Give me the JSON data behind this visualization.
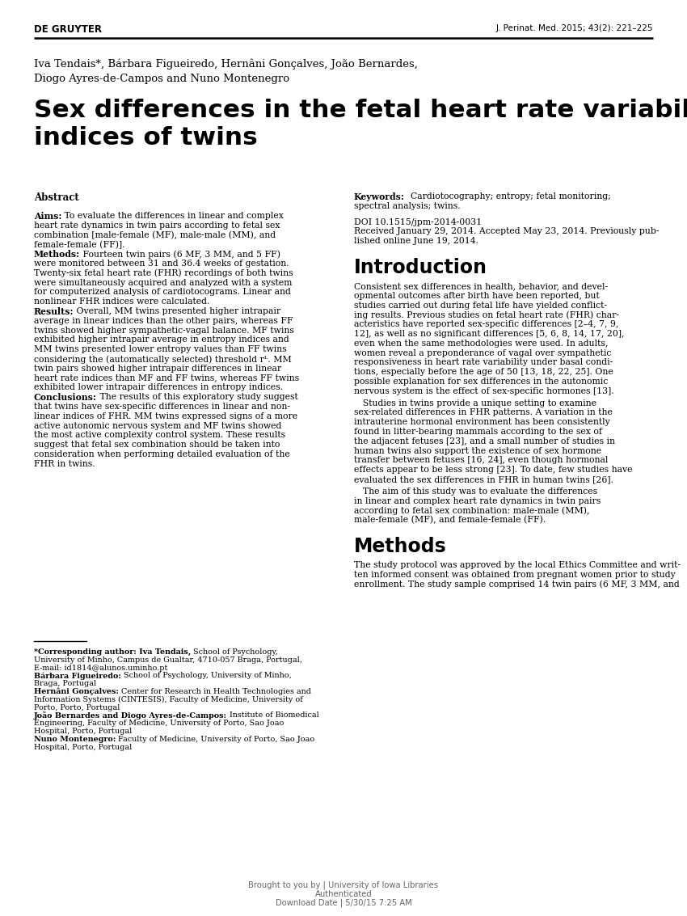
{
  "background_color": "#ffffff",
  "header_left": "DE GRUYTER",
  "header_right": "J. Perinat. Med. 2015; 43(2): 221–225",
  "authors": "Iva Tendais*, Bárbara Figueiredo, Hernâni Gonçalves, João Bernardes,\nDiogo Ayres-de-Campos and Nuno Montenegro",
  "title_line1": "Sex differences in the fetal heart rate variability",
  "title_line2": "indices of twins",
  "abstract_label": "Abstract",
  "aims_bold": "Aims:",
  "aims_text": " To evaluate the differences in linear and complex heart rate dynamics in twin pairs according to fetal sex combination [male-female (MF), male-male (MM), and female-female (FF)].",
  "methods_bold": "Methods:",
  "methods_text": " Fourteen twin pairs (6 MF, 3 MM, and 5 FF) were monitored between 31 and 36.4 weeks of gestation. Twenty-six fetal heart rate (FHR) recordings of both twins were simultaneously acquired and analyzed with a system for computerized analysis of cardiotocograms. Linear and nonlinear FHR indices were calculated.",
  "results_bold": "Results:",
  "results_text": " Overall, MM twins presented higher intrapair average in linear indices than the other pairs, whereas FF twins showed higher sympathetic-vagal balance. MF twins exhibited higher intrapair average in entropy indices and MM twins presented lower entropy values than FF twins considering the (automatically selected) threshold rᴸ. MM twin pairs showed higher intrapair differences in linear heart rate indices than MF and FF twins, whereas FF twins exhibited lower intrapair differences in entropy indices.",
  "conclusions_bold": "Conclusions:",
  "conclusions_text": " The results of this exploratory study suggest that twins have sex-specific differences in linear and nonlinear indices of FHR. MM twins expressed signs of a more active autonomic nervous system and MF twins showed the most active complexity control system. These results suggest that fetal sex combination should be taken into consideration when performing detailed evaluation of the FHR in twins.",
  "footnote_corresponding_bold": "*Corresponding author: Iva Tendais,",
  "footnote_corresponding_rest": " School of Psychology, University of Minho, Campus de Gualtar, 4710-057 Braga, Portugal, E-mail: id1814@alunos.uminho.pt",
  "footnote_barbara_bold": "Bárbara Figueiredo:",
  "footnote_barbara_rest": " School of Psychology, University of Minho, Braga, Portugal",
  "footnote_hernani_bold": "Hernâni Gonçalves:",
  "footnote_hernani_rest": " Center for Research in Health Technologies and Information Systems (CINTESIS), Faculty of Medicine, University of Porto, Porto, Portugal",
  "footnote_joao_bold": "João Bernardes and Diogo Ayres-de-Campos:",
  "footnote_joao_rest": " Institute of Biomedical Engineering, Faculty of Medicine, University of Porto, Sao Joao Hospital, Porto, Portugal",
  "footnote_nuno_bold": "Nuno Montenegro:",
  "footnote_nuno_rest": " Faculty of Medicine, University of Porto, Sao Joao Hospital, Porto, Portugal",
  "keywords_bold": "Keywords:",
  "keywords_text": " Cardiotocography; entropy; fetal monitoring; spectral analysis; twins.",
  "doi": "DOI 10.1515/jpm-2014-0031",
  "received_line1": "Received January 29, 2014. Accepted May 23, 2014. Previously pub-",
  "received_line2": "lished online June 19, 2014.",
  "intro_heading": "Introduction",
  "intro_p1_lines": [
    "Consistent sex differences in health, behavior, and devel-",
    "opmental outcomes after birth have been reported, but",
    "studies carried out during fetal life have yielded conflict-",
    "ing results. Previous studies on fetal heart rate (FHR) char-",
    "acteristics have reported sex-specific differences [2–4, 7, 9,",
    "12], as well as no significant differences [5, 6, 8, 14, 17, 20],",
    "even when the same methodologies were used. In adults,",
    "women reveal a preponderance of vagal over sympathetic",
    "responsiveness in heart rate variability under basal condi-",
    "tions, especially before the age of 50 [13, 18, 22, 25]. One",
    "possible explanation for sex differences in the autonomic",
    "nervous system is the effect of sex-specific hormones [13]."
  ],
  "intro_p2_lines": [
    " Studies in twins provide a unique setting to examine",
    "sex-related differences in FHR patterns. A variation in the",
    "intrauterine hormonal environment has been consistently",
    "found in litter-bearing mammals according to the sex of",
    "the adjacent fetuses [23], and a small number of studies in",
    "human twins also support the existence of sex hormone",
    "transfer between fetuses [16, 24], even though hormonal",
    "effects appear to be less strong [23]. To date, few studies have",
    "evaluated the sex differences in FHR in human twins [26]."
  ],
  "intro_p3_lines": [
    " The aim of this study was to evaluate the differences",
    "in linear and complex heart rate dynamics in twin pairs",
    "according to fetal sex combination: male-male (MM),",
    "male-female (MF), and female-female (FF)."
  ],
  "methods_heading": "Methods",
  "methods_p1_lines": [
    "The study protocol was approved by the local Ethics Committee and writ-",
    "ten informed consent was obtained from pregnant women prior to study",
    "enrollment. The study sample comprised 14 twin pairs (6 MF, 3 MM, and"
  ],
  "footer_line1": "Brought to you by | University of Iowa Libraries",
  "footer_line2": "Authenticated",
  "footer_line3": "Download Date | 5/30/15 7:25 AM",
  "col1_abstract_lines": {
    "aims": [
      "Aims: To evaluate the differences in linear and complex",
      "heart rate dynamics in twin pairs according to fetal sex",
      "combination [male-female (MF), male-male (MM), and",
      "female-female (FF)]."
    ],
    "methods": [
      "Methods: Fourteen twin pairs (6 MF, 3 MM, and 5 FF)",
      "were monitored between 31 and 36.4 weeks of gestation.",
      "Twenty-six fetal heart rate (FHR) recordings of both twins",
      "were simultaneously acquired and analyzed with a system",
      "for computerized analysis of cardiotocograms. Linear and",
      "nonlinear FHR indices were calculated."
    ],
    "results": [
      "Results: Overall, MM twins presented higher intrapair",
      "average in linear indices than the other pairs, whereas FF",
      "twins showed higher sympathetic-vagal balance. MF twins",
      "exhibited higher intrapair average in entropy indices and",
      "MM twins presented lower entropy values than FF twins",
      "considering the (automatically selected) threshold rᴸ. MM",
      "twin pairs showed higher intrapair differences in linear",
      "heart rate indices than MF and FF twins, whereas FF twins",
      "exhibited lower intrapair differences in entropy indices."
    ],
    "conclusions": [
      "Conclusions: The results of this exploratory study suggest",
      "that twins have sex-specific differences in linear and non-",
      "linear indices of FHR. MM twins expressed signs of a more",
      "active autonomic nervous system and MF twins showed",
      "the most active complexity control system. These results",
      "suggest that fetal sex combination should be taken into",
      "consideration when performing detailed evaluation of the",
      "FHR in twins."
    ]
  },
  "footnotes": [
    {
      "bold": "*Corresponding author: Iva Tendais,",
      "rest": " School of Psychology,\nUniversity of Minho, Campus de Gualtar, 4710-057 Braga, Portugal,\nE-mail: id1814@alunos.uminho.pt"
    },
    {
      "bold": "Bárbara Figueiredo:",
      "rest": " School of Psychology, University of Minho,\nBraga, Portugal"
    },
    {
      "bold": "Hernâni Gonçalves:",
      "rest": " Center for Research in Health Technologies and\nInformation Systems (CINTESIS), Faculty of Medicine, University of\nPorto, Porto, Portugal"
    },
    {
      "bold": "João Bernardes and Diogo Ayres-de-Campos:",
      "rest": " Institute of Biomedical\nEngineering, Faculty of Medicine, University of Porto, Sao Joao\nHospital, Porto, Portugal"
    },
    {
      "bold": "Nuno Montenegro:",
      "rest": " Faculty of Medicine, University of Porto, Sao Joao\nHospital, Porto, Portugal"
    }
  ]
}
